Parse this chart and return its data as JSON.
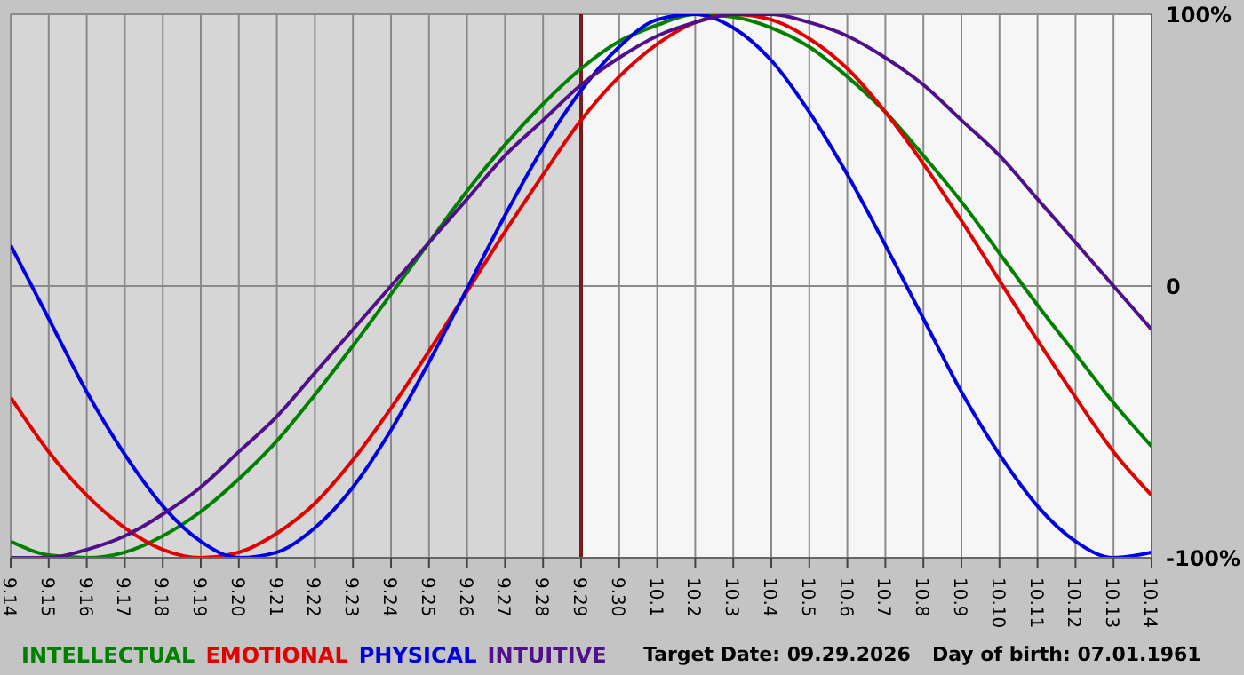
{
  "chart_data": {
    "type": "line",
    "categories": [
      "9.14",
      "9.15",
      "9.16",
      "9.17",
      "9.18",
      "9.19",
      "9.20",
      "9.21",
      "9.22",
      "9.23",
      "9.24",
      "9.25",
      "9.26",
      "9.27",
      "9.28",
      "9.29",
      "9.30",
      "10.1",
      "10.2",
      "10.3",
      "10.4",
      "10.5",
      "10.6",
      "10.7",
      "10.8",
      "10.9",
      "10.10",
      "10.11",
      "10.12",
      "10.13",
      "10.14"
    ],
    "series": [
      {
        "name": "INTELLECTUAL",
        "color": "#008000",
        "values": [
          -94,
          -99,
          -100,
          -98,
          -92,
          -83,
          -71,
          -57,
          -40,
          -22,
          -3,
          16,
          35,
          52,
          67,
          80,
          90,
          96,
          100,
          99,
          95,
          88,
          77,
          64,
          48,
          31,
          12,
          -7,
          -25,
          -43,
          -59
        ]
      },
      {
        "name": "EMOTIONAL",
        "color": "#e00000",
        "values": [
          -41,
          -61,
          -77,
          -89,
          -97,
          -100,
          -98,
          -91,
          -80,
          -64,
          -45,
          -24,
          -2,
          20,
          41,
          61,
          77,
          89,
          97,
          100,
          98,
          91,
          80,
          64,
          45,
          24,
          2,
          -20,
          -41,
          -61,
          -77
        ]
      },
      {
        "name": "PHYSICAL",
        "color": "#0000e0",
        "values": [
          15,
          -12,
          -39,
          -62,
          -81,
          -94,
          -100,
          -98,
          -89,
          -74,
          -53,
          -28,
          -1,
          26,
          51,
          72,
          88,
          98,
          100,
          95,
          83,
          64,
          41,
          15,
          -12,
          -39,
          -62,
          -81,
          -94,
          -100,
          -98
        ]
      },
      {
        "name": "INTUITIVE",
        "color": "#50108a",
        "values": [
          -100,
          -100,
          -97,
          -92,
          -84,
          -74,
          -61,
          -48,
          -32,
          -16,
          0,
          16,
          32,
          48,
          61,
          74,
          84,
          92,
          97,
          100,
          100,
          97,
          92,
          84,
          74,
          61,
          48,
          32,
          16,
          0,
          -16
        ]
      }
    ],
    "ylim": [
      -100,
      100
    ],
    "yticks": [
      {
        "value": 100,
        "label": "100%"
      },
      0,
      {
        "value": -100,
        "label": "-100%"
      }
    ],
    "grid": true,
    "legend": "bottom",
    "ref_lines": [
      {
        "axis": "x",
        "value": "9.29",
        "color": "#7a1a1a"
      }
    ],
    "bands": [
      {
        "axis": "x",
        "from": "9.14",
        "to": "9.29",
        "color": "#d6d6d6"
      }
    ],
    "annotations": [
      "Target Date: 09.29.2026",
      "Day of birth: 07.01.1961"
    ]
  }
}
